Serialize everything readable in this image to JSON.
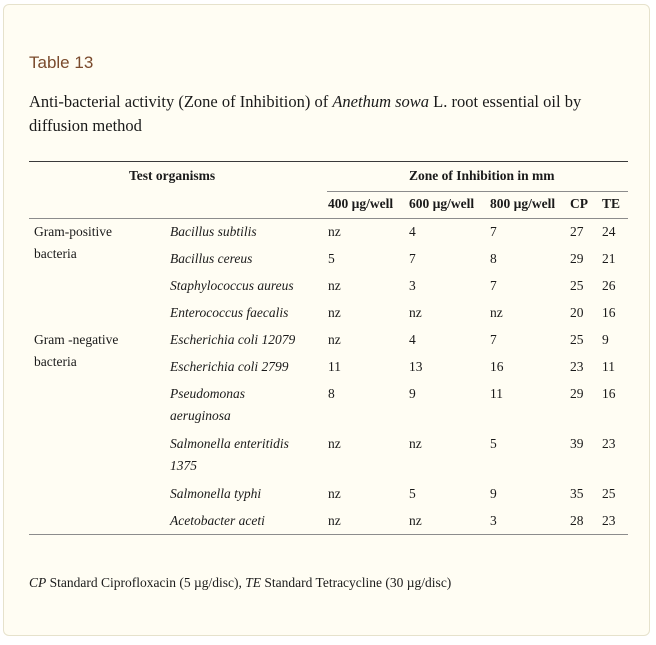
{
  "label": "Table 13",
  "caption": {
    "prefix": "Anti-bacterial activity (Zone of Inhibition) of ",
    "species": "Anethum sowa",
    "suffix": " L. root essential oil by diffusion method"
  },
  "header": {
    "organisms": "Test organisms",
    "zone": "Zone of Inhibition in mm",
    "cols": [
      "400 µg/well",
      "600 µg/well",
      "800 µg/well",
      "CP",
      "TE"
    ]
  },
  "groups": [
    {
      "line1": "Gram-positive",
      "line2": "bacteria"
    },
    {
      "line1": "Gram -negative",
      "line2": "bacteria"
    }
  ],
  "rows": [
    {
      "organism": [
        "Bacillus subtilis"
      ],
      "values": [
        "nz",
        "4",
        "7",
        "27",
        "24"
      ]
    },
    {
      "organism": [
        "Bacillus cereus"
      ],
      "values": [
        "5",
        "7",
        "8",
        "29",
        "21"
      ]
    },
    {
      "organism": [
        "Staphylococcus aureus"
      ],
      "values": [
        "nz",
        "3",
        "7",
        "25",
        "26"
      ]
    },
    {
      "organism": [
        "Enterococcus faecalis"
      ],
      "values": [
        "nz",
        "nz",
        "nz",
        "20",
        "16"
      ]
    },
    {
      "organism": [
        "Escherichia coli 12079"
      ],
      "values": [
        "nz",
        "4",
        "7",
        "25",
        "9"
      ]
    },
    {
      "organism": [
        "Escherichia coli 2799"
      ],
      "values": [
        "11",
        "13",
        "16",
        "23",
        "11"
      ]
    },
    {
      "organism": [
        "Pseudomonas",
        "aeruginosa"
      ],
      "values": [
        "8",
        "9",
        "11",
        "29",
        "16"
      ]
    },
    {
      "organism": [
        "Salmonella enteritidis",
        "1375"
      ],
      "values": [
        "nz",
        "nz",
        "5",
        "39",
        "23"
      ]
    },
    {
      "organism": [
        "Salmonella typhi"
      ],
      "values": [
        "nz",
        "5",
        "9",
        "35",
        "25"
      ]
    },
    {
      "organism": [
        "Acetobacter aceti"
      ],
      "values": [
        "nz",
        "nz",
        "3",
        "28",
        "23"
      ]
    }
  ],
  "footnote": {
    "cp_abbr": "CP",
    "cp_text": " Standard Ciprofloxacin (5 µg/disc), ",
    "te_abbr": "TE",
    "te_text": " Standard Tetracycline (30 µg/disc)"
  }
}
